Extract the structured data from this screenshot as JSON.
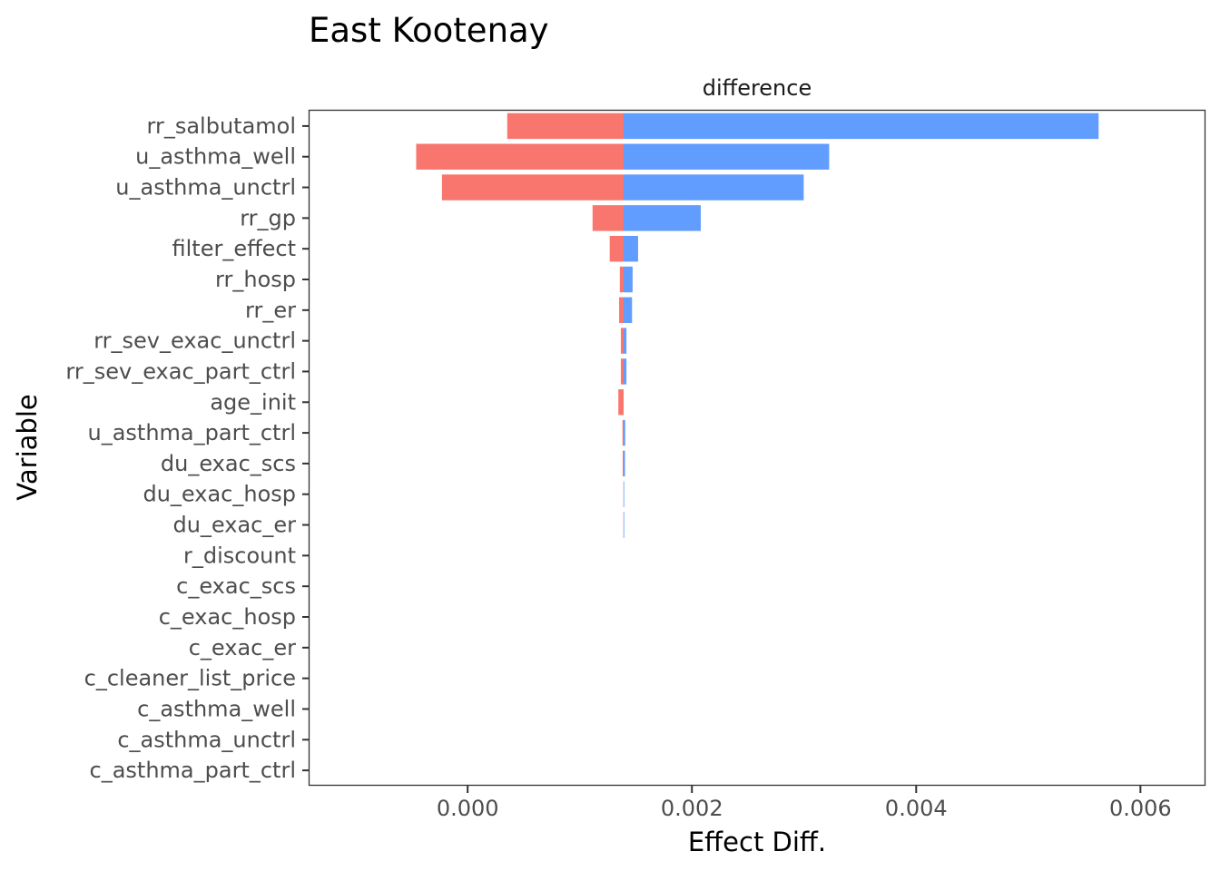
{
  "chart_data": {
    "type": "bar",
    "title": "East Kootenay",
    "facet_label": "difference",
    "xlabel": "Effect Diff.",
    "ylabel": "Variable",
    "baseline": 0.001391,
    "xlim": [
      -0.00141,
      0.00658
    ],
    "xticks": [
      0.0,
      0.002,
      0.004,
      0.006
    ],
    "xtick_labels": [
      "0.000",
      "0.002",
      "0.004",
      "0.006"
    ],
    "grid": false,
    "categories": [
      "rr_salbutamol",
      "u_asthma_well",
      "u_asthma_unctrl",
      "rr_gp",
      "filter_effect",
      "rr_hosp",
      "rr_er",
      "rr_sev_exac_unctrl",
      "rr_sev_exac_part_ctrl",
      "age_init",
      "u_asthma_part_ctrl",
      "du_exac_scs",
      "du_exac_hosp",
      "du_exac_er",
      "r_discount",
      "c_exac_scs",
      "c_exac_hosp",
      "c_exac_er",
      "c_cleaner_list_price",
      "c_asthma_well",
      "c_asthma_unctrl",
      "c_asthma_part_ctrl"
    ],
    "series": [
      {
        "color": "#F8766D",
        "values": [
          0.000353,
          -0.000459,
          -0.000229,
          0.001114,
          0.001267,
          0.001357,
          0.001351,
          0.001366,
          0.001366,
          0.001344,
          0.001381,
          0.001383,
          0.001389,
          0.001389,
          0.001391,
          0.001391,
          0.001391,
          0.001391,
          0.001391,
          0.001391,
          0.001391,
          0.001391
        ]
      },
      {
        "color": "#619CFF",
        "values": [
          0.005627,
          0.003224,
          0.002997,
          0.002079,
          0.00152,
          0.001471,
          0.001466,
          0.001416,
          0.001416,
          0.001391,
          0.001405,
          0.001403,
          0.001393,
          0.001393,
          0.001391,
          0.001391,
          0.001391,
          0.001391,
          0.001391,
          0.001391,
          0.001391,
          0.001391
        ]
      }
    ]
  }
}
